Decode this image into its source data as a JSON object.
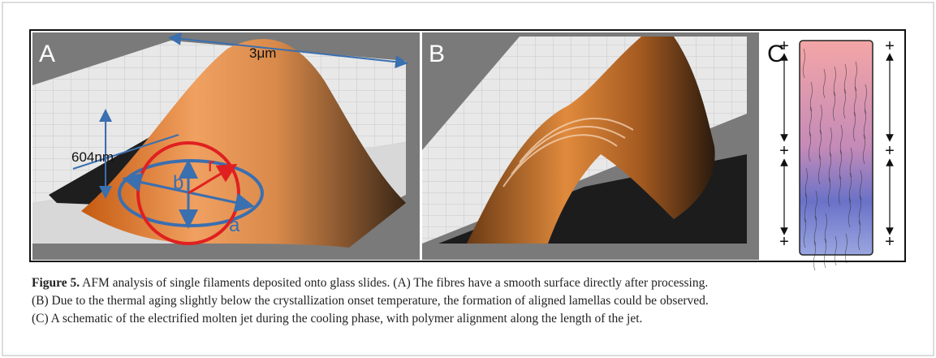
{
  "panel_a": {
    "label": "A",
    "width_label": "3μm",
    "height_label": "604nm",
    "axis_b": "b",
    "axis_r": "r",
    "axis_a": "a"
  },
  "panel_b": {
    "label": "B"
  },
  "panel_c": {
    "label": "C",
    "markers": [
      "+",
      "+",
      "+",
      "+",
      "+",
      "+"
    ]
  },
  "caption": {
    "label": "Figure 5.",
    "lines": [
      " AFM analysis of single filaments deposited onto glass slides. (A) The fibres have a smooth surface directly after processing.",
      "(B) Due to the thermal aging slightly below the crystallization onset temperature, the formation of aligned lamellas could be observed.",
      "(C) A schematic of the electrified molten jet during the cooling phase, with polymer alignment along the length of the jet."
    ]
  }
}
